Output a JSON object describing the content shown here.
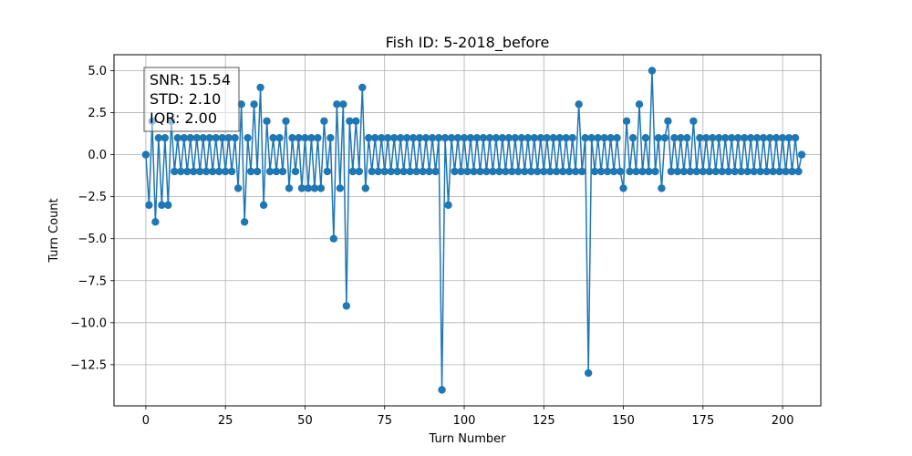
{
  "chart_data": {
    "type": "line",
    "title": "Fish ID: 5-2018_before",
    "xlabel": "Turn Number",
    "ylabel": "Turn Count",
    "xlim": [
      -10,
      212
    ],
    "ylim": [
      -14.95,
      5.95
    ],
    "xticks": [
      0,
      25,
      50,
      75,
      100,
      125,
      150,
      175,
      200
    ],
    "yticks": [
      5.0,
      2.5,
      0.0,
      -2.5,
      -5.0,
      -7.5,
      -10.0,
      -12.5
    ],
    "ytick_labels": [
      "5.0",
      "2.5",
      "0.0",
      "−2.5",
      "−5.0",
      "−7.5",
      "−10.0",
      "−12.5"
    ],
    "grid": true,
    "marker": "circle",
    "series": [
      {
        "color": "#1f77b4",
        "values": [
          0,
          -3,
          2,
          -4,
          1,
          -3,
          1,
          -3,
          2,
          -1,
          1,
          -1,
          1,
          -1,
          1,
          -1,
          1,
          -1,
          1,
          -1,
          1,
          -1,
          1,
          -1,
          1,
          -1,
          1,
          -1,
          1,
          -2,
          3,
          -4,
          1,
          -1,
          3,
          -1,
          4,
          -3,
          2,
          -1,
          1,
          -1,
          1,
          -1,
          2,
          -2,
          1,
          -1,
          1,
          -2,
          1,
          -2,
          1,
          -2,
          1,
          -2,
          2,
          -1,
          1,
          -5,
          3,
          -2,
          3,
          -9,
          2,
          -1,
          2,
          -1,
          4,
          -2,
          1,
          -1,
          1,
          -1,
          1,
          -1,
          1,
          -1,
          1,
          -1,
          1,
          -1,
          1,
          -1,
          1,
          -1,
          1,
          -1,
          1,
          -1,
          1,
          -1,
          1,
          -14,
          1,
          -3,
          1,
          -1,
          1,
          -1,
          1,
          -1,
          1,
          -1,
          1,
          -1,
          1,
          -1,
          1,
          -1,
          1,
          -1,
          1,
          -1,
          1,
          -1,
          1,
          -1,
          1,
          -1,
          1,
          -1,
          1,
          -1,
          1,
          -1,
          1,
          -1,
          1,
          -1,
          1,
          -1,
          1,
          -1,
          1,
          -1,
          3,
          -1,
          1,
          -13,
          1,
          -1,
          1,
          -1,
          1,
          -1,
          1,
          -1,
          1,
          -1,
          -2,
          2,
          -1,
          1,
          -1,
          3,
          -1,
          1,
          -1,
          5,
          -1,
          1,
          -2,
          1,
          2,
          -1,
          1,
          -1,
          1,
          -1,
          1,
          -1,
          2,
          -1,
          1,
          -1,
          1,
          -1,
          1,
          -1,
          1,
          -1,
          1,
          -1,
          1,
          -1,
          1,
          -1,
          1,
          -1,
          1,
          -1,
          1,
          -1,
          1,
          -1,
          1,
          -1,
          1,
          -1,
          1,
          -1,
          1,
          -1,
          1,
          -1,
          0
        ]
      }
    ]
  },
  "stats": {
    "snr": "SNR: 15.54",
    "std": "STD: 2.10",
    "iqr": "IQR: 2.00"
  }
}
